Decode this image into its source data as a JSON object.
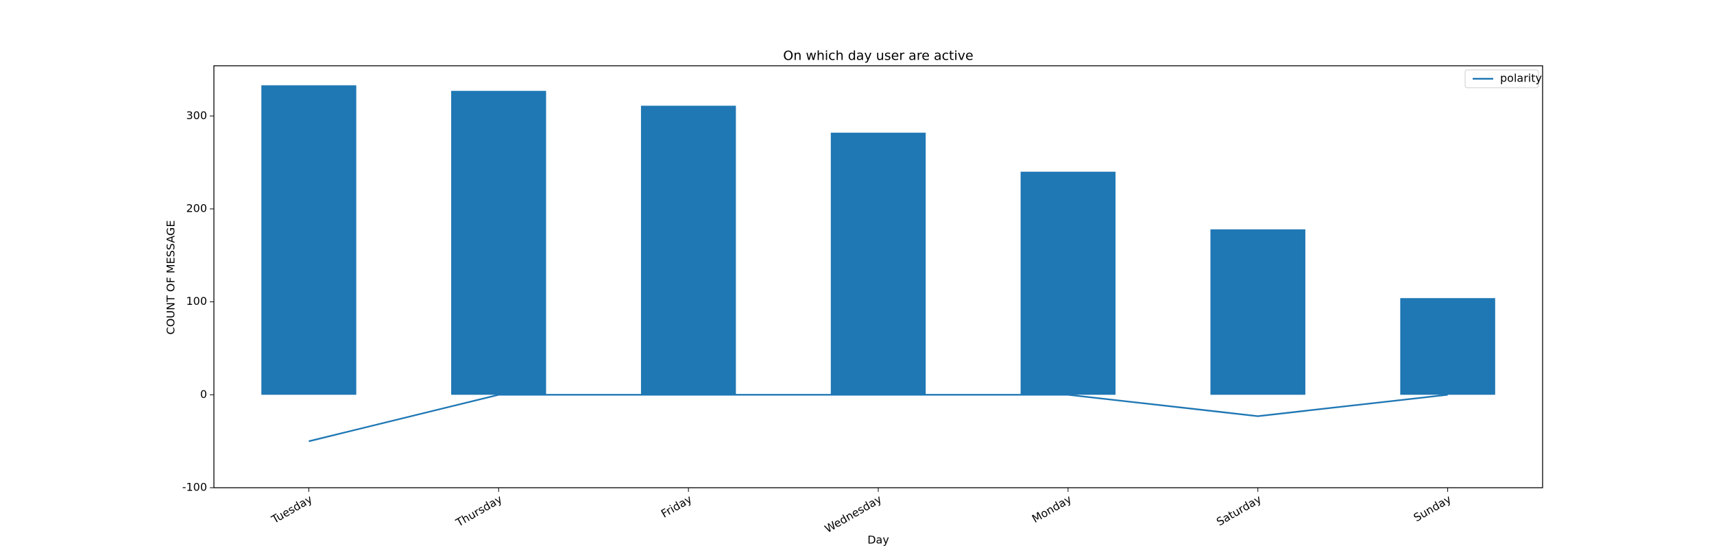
{
  "chart_data": {
    "type": "bar",
    "title": "On which day user are active",
    "x_label": "Day",
    "y_label": "COUNT OF MESSAGE",
    "categories": [
      "Tuesday",
      "Thursday",
      "Friday",
      "Wednesday",
      "Monday",
      "Saturday",
      "Sunday"
    ],
    "series": [
      {
        "type": "bar",
        "color": "#1f77b4",
        "values": [
          333,
          327,
          311,
          282,
          240,
          178,
          104
        ]
      },
      {
        "type": "line",
        "name": "polarity",
        "color": "#1f77b4",
        "values": [
          -50,
          0,
          0,
          0,
          0,
          -23,
          0
        ]
      }
    ],
    "ylim": [
      -100,
      354
    ],
    "yticks": [
      -100,
      0,
      100,
      200,
      300
    ],
    "legend": "upper right"
  }
}
